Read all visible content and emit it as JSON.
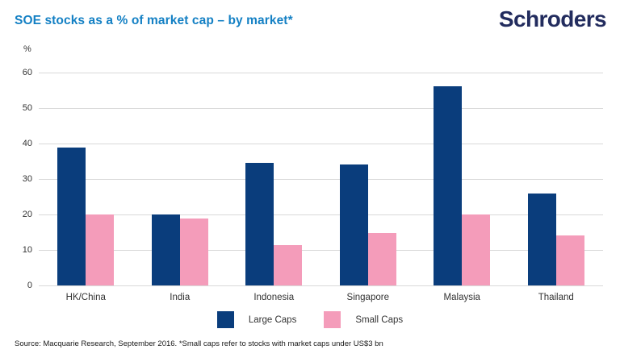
{
  "header": {
    "title": "SOE stocks as a % of market cap – by market*",
    "logo_text": "Schroders"
  },
  "chart_data": {
    "type": "bar",
    "title": "SOE stocks as a % of market cap – by market*",
    "y_unit": "%",
    "categories": [
      "HK/China",
      "India",
      "Indonesia",
      "Singapore",
      "Malaysia",
      "Thailand"
    ],
    "series": [
      {
        "name": "Large Caps",
        "color": "#0a3d7c",
        "values": [
          38.8,
          20,
          34.5,
          34.2,
          56.2,
          26
        ]
      },
      {
        "name": "Small Caps",
        "color": "#f49cba",
        "values": [
          20,
          18.8,
          11.3,
          14.8,
          19.9,
          14
        ]
      }
    ],
    "ylim": [
      0,
      60
    ],
    "yticks": [
      0,
      10,
      20,
      30,
      40,
      50,
      60
    ],
    "grid": true,
    "legend_position": "bottom"
  },
  "footer": {
    "source": "Source: Macquarie Research, September 2016. *Small caps refer to stocks with market caps under US$3 bn"
  },
  "colors": {
    "title_blue": "#1480c4",
    "logo_navy": "#222c5e",
    "large_caps_navy": "#0a3d7c",
    "small_caps_pink": "#f49cba",
    "gridline_gray": "#d9d9d9",
    "text_dark": "#333333"
  }
}
